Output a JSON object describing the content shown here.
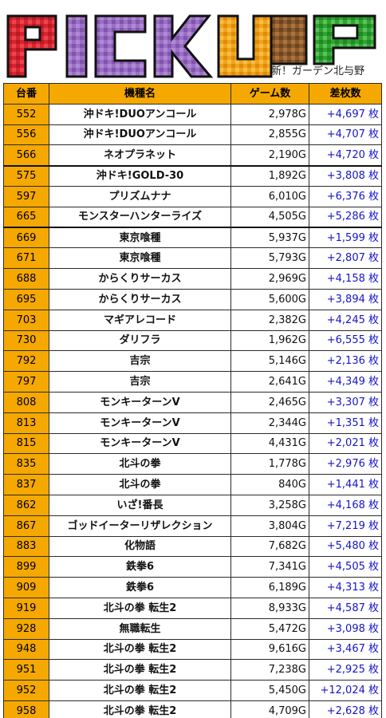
{
  "banner": {
    "logo_text": "PICKUP",
    "store_name": "新！ガーデン北与野",
    "colors": {
      "P": "#d9232e",
      "I": "#9b6fc6",
      "C": "#9b6fc6",
      "K": "#9b6fc6",
      "U": "#f2a51a",
      "P2": "#2fa42f"
    }
  },
  "table": {
    "headers": {
      "no": "台番",
      "name": "機種名",
      "games": "ゲーム数",
      "diff": "差枚数"
    },
    "rows": [
      {
        "no": "552",
        "name": "沖ドキ!DUOアンコール",
        "games": "2,978G",
        "diff": "+4,697 枚"
      },
      {
        "no": "556",
        "name": "沖ドキ!DUOアンコール",
        "games": "2,855G",
        "diff": "+4,707 枚"
      },
      {
        "no": "566",
        "name": "ネオプラネット",
        "games": "2,190G",
        "diff": "+4,720 枚"
      },
      {
        "no": "575",
        "name": "沖ドキ!GOLD-30",
        "games": "1,892G",
        "diff": "+3,808 枚"
      },
      {
        "no": "597",
        "name": "プリズムナナ",
        "games": "6,010G",
        "diff": "+6,376 枚"
      },
      {
        "no": "665",
        "name": "モンスターハンターライズ",
        "games": "4,505G",
        "diff": "+5,286 枚"
      },
      {
        "no": "669",
        "name": "東京喰種",
        "games": "5,937G",
        "diff": "+1,599 枚"
      },
      {
        "no": "671",
        "name": "東京喰種",
        "games": "5,793G",
        "diff": "+2,807 枚"
      },
      {
        "no": "688",
        "name": "からくりサーカス",
        "games": "2,969G",
        "diff": "+4,158 枚"
      },
      {
        "no": "695",
        "name": "からくりサーカス",
        "games": "5,600G",
        "diff": "+3,894 枚"
      },
      {
        "no": "703",
        "name": "マギアレコード",
        "games": "2,382G",
        "diff": "+4,245 枚"
      },
      {
        "no": "730",
        "name": "ダリフラ",
        "games": "1,962G",
        "diff": "+6,555 枚"
      },
      {
        "no": "792",
        "name": "吉宗",
        "games": "5,146G",
        "diff": "+2,136 枚"
      },
      {
        "no": "797",
        "name": "吉宗",
        "games": "2,641G",
        "diff": "+4,349 枚"
      },
      {
        "no": "808",
        "name": "モンキーターンV",
        "games": "2,465G",
        "diff": "+3,307 枚"
      },
      {
        "no": "813",
        "name": "モンキーターンV",
        "games": "2,344G",
        "diff": "+1,351 枚"
      },
      {
        "no": "815",
        "name": "モンキーターンV",
        "games": "4,431G",
        "diff": "+2,021 枚"
      },
      {
        "no": "835",
        "name": "北斗の拳",
        "games": "1,778G",
        "diff": "+2,976 枚"
      },
      {
        "no": "837",
        "name": "北斗の拳",
        "games": "840G",
        "diff": "+1,441 枚"
      },
      {
        "no": "862",
        "name": "いざ!番長",
        "games": "3,258G",
        "diff": "+4,168 枚"
      },
      {
        "no": "867",
        "name": "ゴッドイーターリザレクション",
        "games": "3,804G",
        "diff": "+7,219 枚"
      },
      {
        "no": "883",
        "name": "化物語",
        "games": "7,682G",
        "diff": "+5,480 枚"
      },
      {
        "no": "899",
        "name": "鉄拳6",
        "games": "7,341G",
        "diff": "+4,505 枚"
      },
      {
        "no": "909",
        "name": "鉄拳6",
        "games": "6,189G",
        "diff": "+4,313 枚"
      },
      {
        "no": "919",
        "name": "北斗の拳 転生2",
        "games": "8,933G",
        "diff": "+4,587 枚"
      },
      {
        "no": "928",
        "name": "無職転生",
        "games": "5,472G",
        "diff": "+3,098 枚"
      },
      {
        "no": "948",
        "name": "北斗の拳 転生2",
        "games": "9,616G",
        "diff": "+3,467 枚"
      },
      {
        "no": "951",
        "name": "北斗の拳 転生2",
        "games": "7,238G",
        "diff": "+2,925 枚"
      },
      {
        "no": "952",
        "name": "北斗の拳 転生2",
        "games": "5,450G",
        "diff": "+12,024 枚"
      },
      {
        "no": "958",
        "name": "北斗の拳 転生2",
        "games": "4,709G",
        "diff": "+2,628 枚"
      }
    ]
  }
}
